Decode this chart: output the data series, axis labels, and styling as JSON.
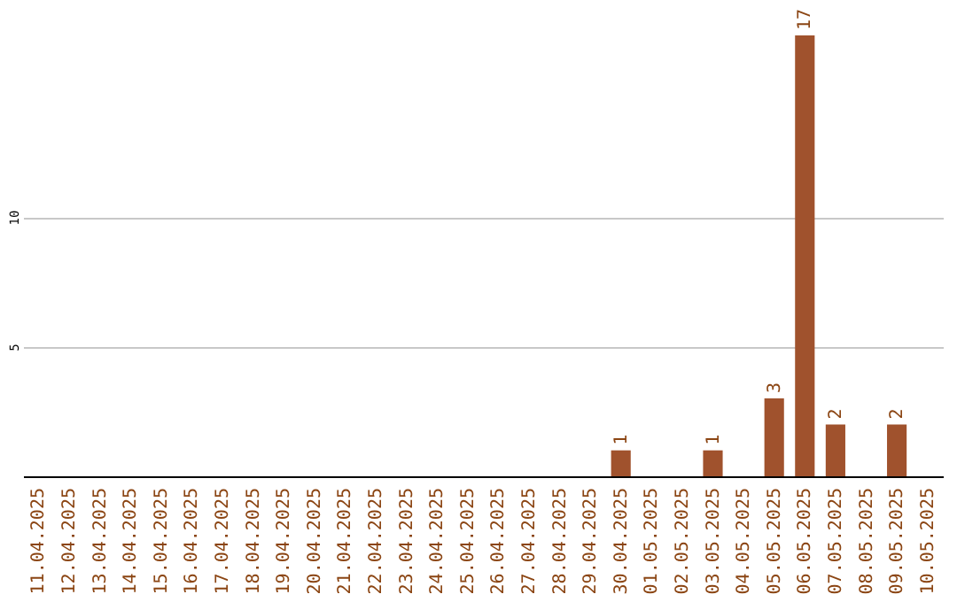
{
  "chart_data": {
    "type": "bar",
    "categories": [
      "11.04.2025",
      "12.04.2025",
      "13.04.2025",
      "14.04.2025",
      "15.04.2025",
      "16.04.2025",
      "17.04.2025",
      "18.04.2025",
      "19.04.2025",
      "20.04.2025",
      "21.04.2025",
      "22.04.2025",
      "23.04.2025",
      "24.04.2025",
      "25.04.2025",
      "26.04.2025",
      "27.04.2025",
      "28.04.2025",
      "29.04.2025",
      "30.04.2025",
      "01.05.2025",
      "02.05.2025",
      "03.05.2025",
      "04.05.2025",
      "05.05.2025",
      "06.05.2025",
      "07.05.2025",
      "08.05.2025",
      "09.05.2025",
      "10.05.2025"
    ],
    "values": [
      0,
      0,
      0,
      0,
      0,
      0,
      0,
      0,
      0,
      0,
      0,
      0,
      0,
      0,
      0,
      0,
      0,
      0,
      0,
      1,
      0,
      0,
      1,
      0,
      3,
      17,
      2,
      0,
      2,
      0
    ],
    "value_labels": [
      null,
      null,
      null,
      null,
      null,
      null,
      null,
      null,
      null,
      null,
      null,
      null,
      null,
      null,
      null,
      null,
      null,
      null,
      null,
      "1",
      null,
      null,
      "1",
      null,
      "3",
      "17",
      "2",
      null,
      "2",
      null
    ],
    "color": "#a0522d",
    "ylim": [
      0,
      17
    ],
    "yticks": [
      5,
      10
    ],
    "grid": "y"
  }
}
